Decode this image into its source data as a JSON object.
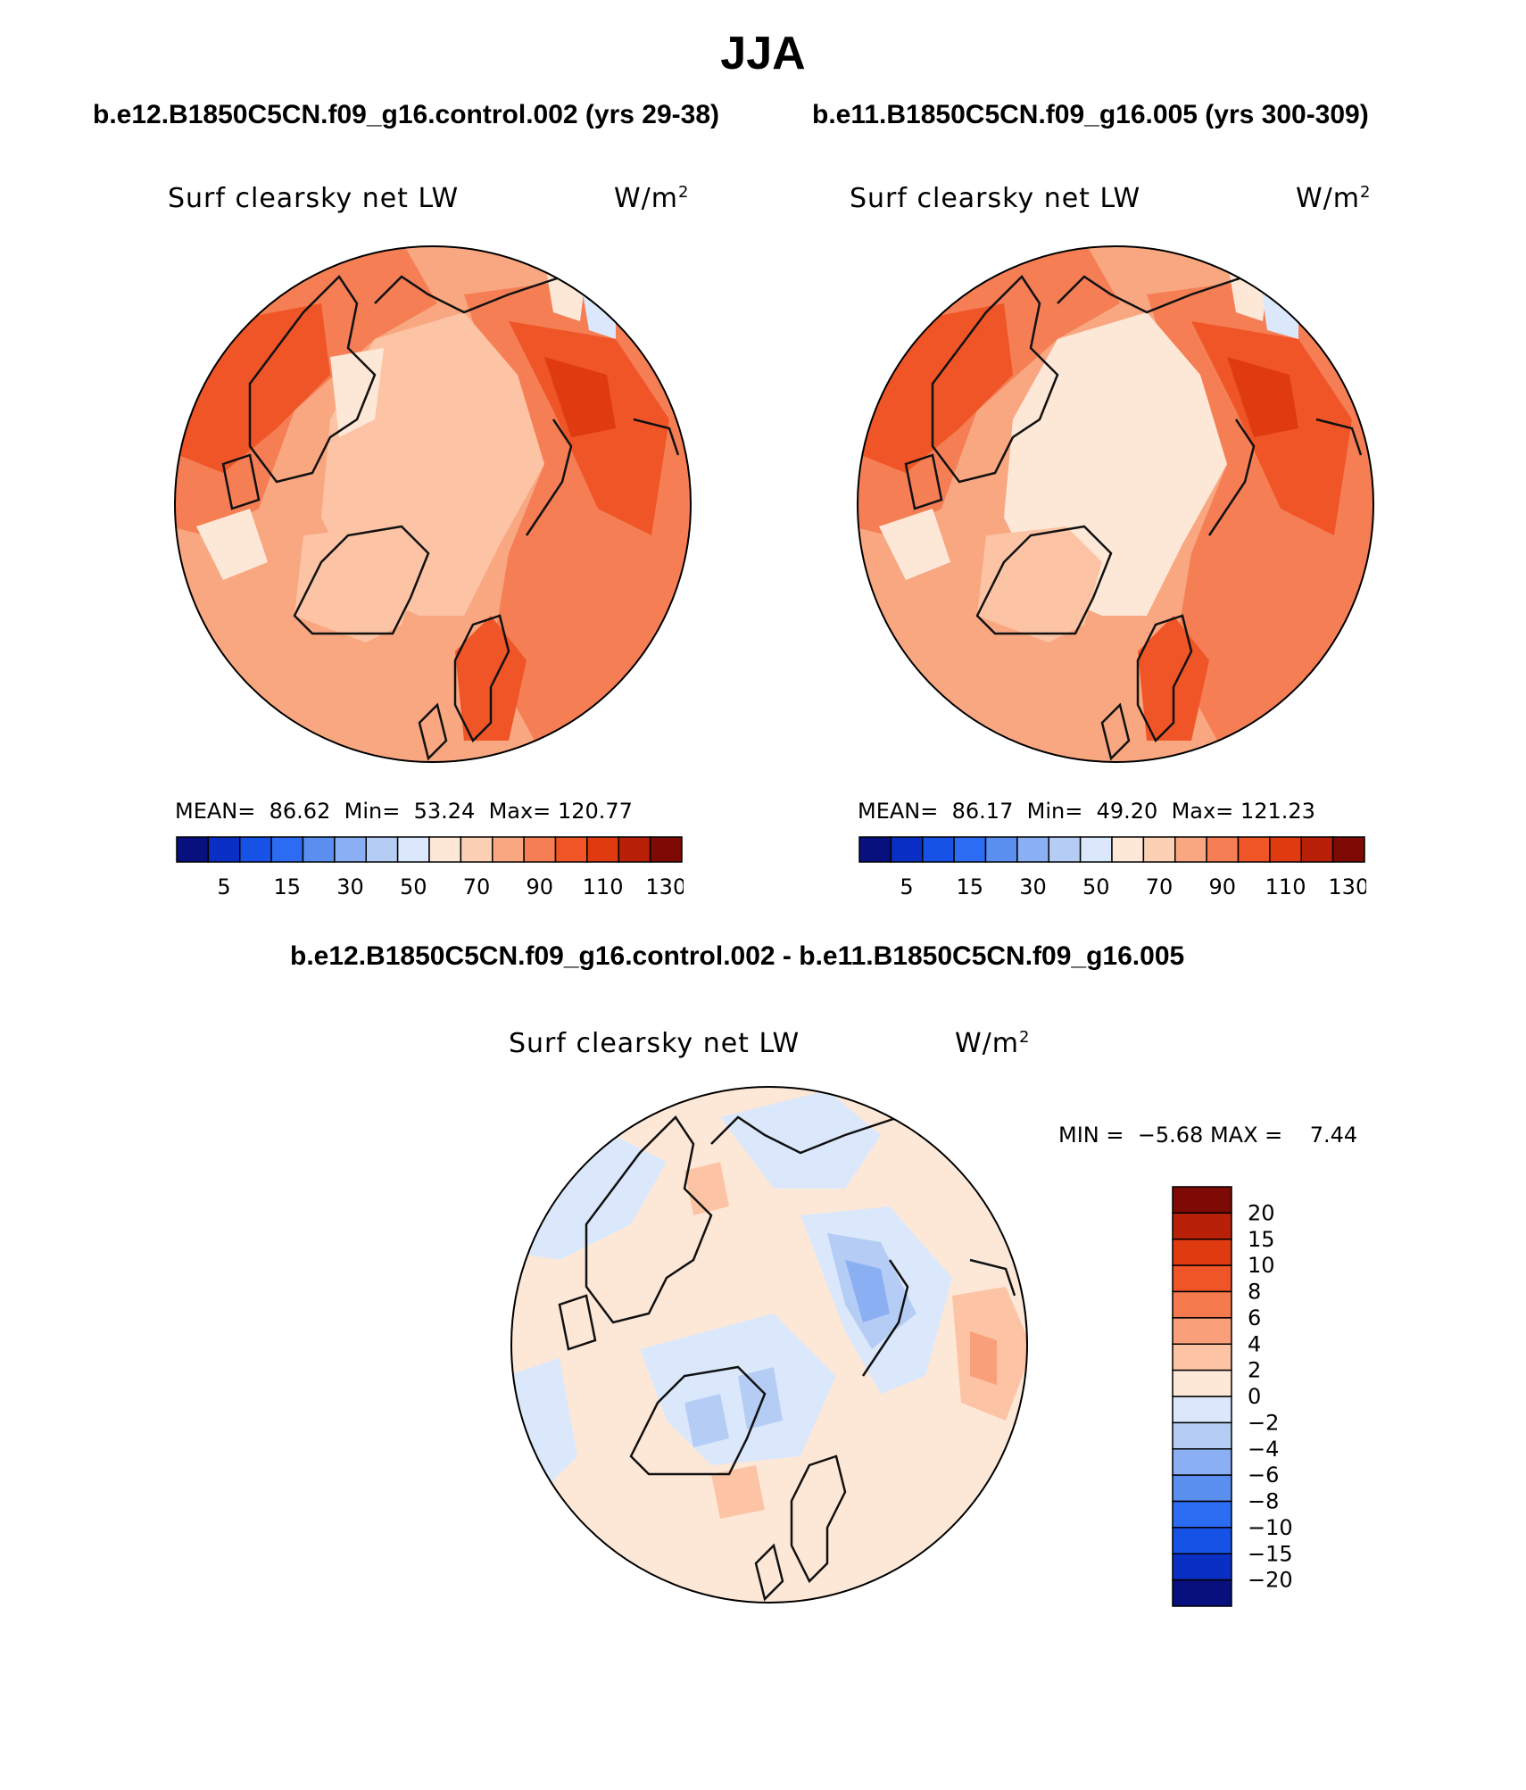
{
  "title": "JJA",
  "panels": [
    {
      "case": "b.e12.B1850C5CN.f09_g16.control.002 (yrs 29-38)",
      "variable": "Surf clearsky net LW",
      "units": "W/m",
      "units_sup": "2",
      "stats": {
        "mean_label": "MEAN=",
        "mean": "86.62",
        "min_label": "Min=",
        "min": "53.24",
        "max_label": "Max=",
        "max": "120.77"
      }
    },
    {
      "case": "b.e11.B1850C5CN.f09_g16.005 (yrs 300-309)",
      "variable": "Surf clearsky net LW",
      "units": "W/m",
      "units_sup": "2",
      "stats": {
        "mean_label": "MEAN=",
        "mean": "86.17",
        "min_label": "Min=",
        "min": "49.20",
        "max_label": "Max=",
        "max": "121.23"
      }
    },
    {
      "case": "b.e12.B1850C5CN.f09_g16.control.002 - b.e11.B1850C5CN.f09_g16.005",
      "variable": "Surf clearsky net LW",
      "units": "W/m",
      "units_sup": "2",
      "stats": {
        "min_label": "MIN =",
        "min": "−5.68",
        "max_label": "MAX =",
        "max": "7.44"
      }
    }
  ],
  "colorbar_abs": {
    "colors": [
      "#08107d",
      "#0a2fc4",
      "#1652e6",
      "#2c6cf2",
      "#5a8ff0",
      "#8aaff2",
      "#b5cdf5",
      "#dbe8fb",
      "#fde8d8",
      "#fcd0b4",
      "#f9a781",
      "#f57e55",
      "#ef5527",
      "#df3a10",
      "#b82108",
      "#7e0a05"
    ],
    "tick_labels": [
      "5",
      "15",
      "30",
      "50",
      "70",
      "90",
      "110",
      "130"
    ]
  },
  "colorbar_diff": {
    "colors": [
      "#08107d",
      "#0a2fc4",
      "#1652e6",
      "#2c6cf2",
      "#5a8ff0",
      "#8aaff2",
      "#b5cdf5",
      "#dbe8fb",
      "#fde8d8",
      "#fcc4a4",
      "#f9a07a",
      "#f57a4e",
      "#ef5527",
      "#df3a10",
      "#b82108",
      "#7e0a05"
    ],
    "tick_labels": [
      "20",
      "15",
      "10",
      "8",
      "6",
      "4",
      "2",
      "0",
      "−2",
      "−4",
      "−6",
      "−8",
      "−10",
      "−15",
      "−20"
    ]
  },
  "map_colors": {
    "base1": "#fcc4a4",
    "base2": "#f9a781",
    "mid": "#f57e55",
    "high": "#ef5527",
    "peak": "#df3a10",
    "ice": "#fde8d8",
    "cold": "#dbe8fb",
    "diff_base": "#fde8d8",
    "diff_neg": "#dbe8fb",
    "diff_neg2": "#b5cdf5",
    "diff_neg3": "#8aaff2",
    "diff_pos": "#fcc4a4",
    "diff_pos2": "#f9a07a"
  }
}
